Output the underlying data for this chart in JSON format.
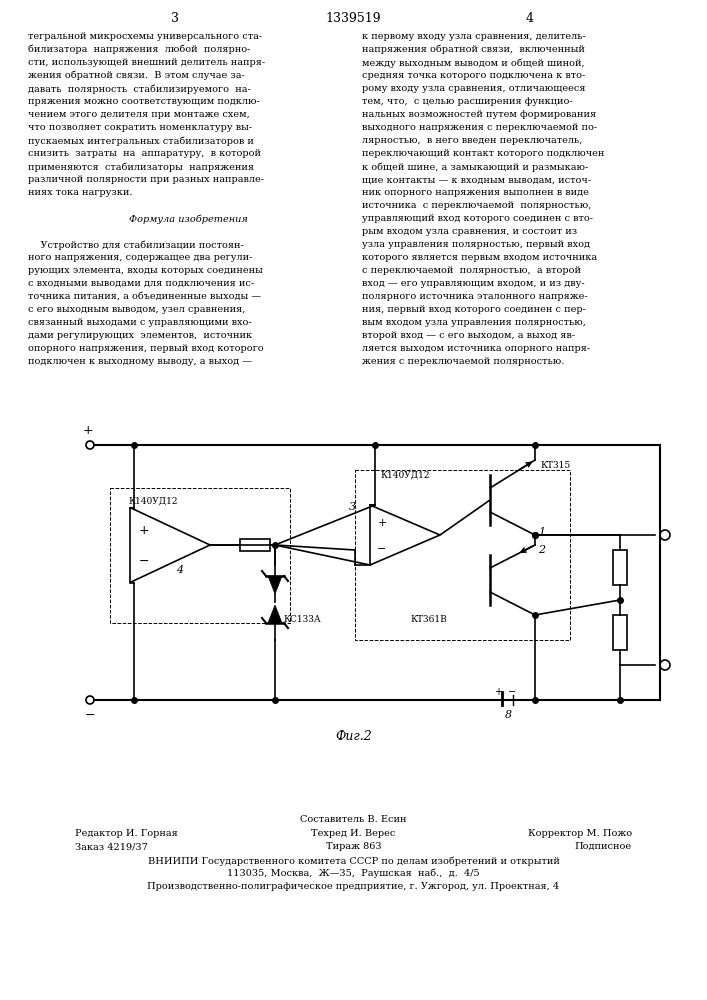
{
  "page_header": "1339519",
  "page_left_num": "3",
  "page_right_num": "4",
  "col_left_text": [
    "тегральной микросхемы универсального ста-",
    "билизатора  напряжения  любой  полярно-",
    "сти, использующей внешний делитель напря-",
    "жения обратной связи.  В этом случае за-",
    "давать  полярность  стабилизируемого  на-",
    "пряжения можно соответствующим подклю-",
    "чением этого делителя при монтаже схем,",
    "что позволяет сократить номенклатуру вы-",
    "пускаемых интегральных стабилизаторов и",
    "снизить  затраты  на  аппаратуру,  в которой",
    "применяются  стабилизаторы  напряжения",
    "различной полярности при разных направле-",
    "ниях тока нагрузки.",
    "",
    "Формула изобретения",
    "",
    "    Устройство для стабилизации постоян-",
    "ного напряжения, содержащее два регули-",
    "рующих элемента, входы которых соединены",
    "с входными выводами для подключения ис-",
    "точника питания, а объединенные выходы —",
    "с его выходным выводом, узел сравнения,",
    "связанный выходами с управляющими вхо-",
    "дами регулирующих  элементов,  источник",
    "опорного напряжения, первый вход которого",
    "подключен к выходному выводу, а выход —"
  ],
  "col_right_text": [
    "к первому входу узла сравнения, делитель-",
    "напряжения обратной связи,  включенный",
    "между выходным выводом и общей шиной,",
    "средняя точка которого подключена к вто-",
    "рому входу узла сравнения, отличающееся",
    "тем, что,  с целью расширения функцио-",
    "нальных возможностей путем формирования",
    "выходного напряжения с переключаемой по-",
    "лярностью,  в него введен переключатель,",
    "переключающий контакт которого подключен",
    "к общей шине, а замыкающий и размыкаю-",
    "щие контакты — к входным выводам, источ-",
    "ник опорного напряжения выполнен в виде",
    "источника  с переключаемой  полярностью,",
    "управляющий вход которого соединен с вто-",
    "рым входом узла сравнения, и состоит из",
    "узла управления полярностью, первый вход",
    "которого является первым входом источника",
    "с переключаемой  полярностью,  а второй",
    "вход — его управляющим входом, и из дву-",
    "полярного источника эталонного напряже-",
    "ния, первый вход которого соединен с пер-",
    "вым входом узла управления полярностью,",
    "второй вход — с его выходом, а выход яв-",
    "ляется выходом источника опорного напря-",
    "жения с переключаемой полярностью."
  ],
  "fig_caption": "Фиг.2",
  "footer_line1": "Составитель В. Есин",
  "footer_line2_left": "Редактор И. Горная",
  "footer_line2_mid": "Техред И. Верес",
  "footer_line2_right": "Корректор М. Пожо",
  "footer_line3_left": "Заказ 4219/37",
  "footer_line3_mid": "Тираж 863",
  "footer_line3_right": "Подписное",
  "footer_line4": "ВНИИПИ Государственного комитета СССР по делам изобретений и открытий",
  "footer_line5": "113035, Москва,  Ж—35,  Раушская  наб.,  д.  4/5",
  "footer_line6": "Производственно-полиграфическое предприятие, г. Ужгород, ул. Проектная, 4",
  "bg_color": "#ffffff",
  "text_color": "#000000"
}
